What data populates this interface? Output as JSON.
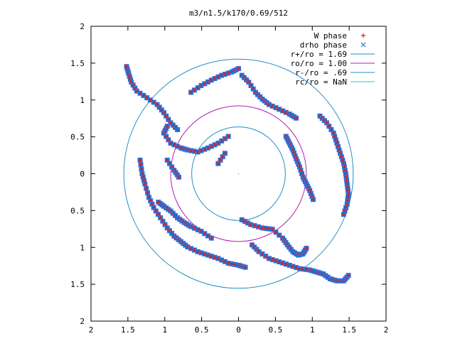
{
  "chart_data": {
    "type": "scatter",
    "title": "m3/n1.5/k170/0.69/512",
    "xlim": [
      -2,
      2
    ],
    "ylim": [
      -2,
      2
    ],
    "x_tick_values": [
      -2,
      -1.5,
      -1,
      -0.5,
      0,
      0.5,
      1,
      1.5,
      2
    ],
    "x_tick_labels": [
      "2",
      "1.5",
      "1",
      "0.5",
      "0",
      "0.5",
      "1",
      "1.5",
      "2"
    ],
    "y_tick_values": [
      2,
      1.5,
      1,
      0.5,
      0,
      -0.5,
      -1,
      -1.5,
      -2
    ],
    "y_tick_labels": [
      "2",
      "1.5",
      "1",
      "0.5",
      "0",
      "0.5",
      "1",
      "1.5",
      "2"
    ],
    "grid": false,
    "legend_position": "top-right",
    "circles": [
      {
        "label": "r+/ro = 1.69",
        "radius": 1.69,
        "color": "#1f8fc8"
      },
      {
        "label": "ro/ro = 1.00",
        "radius": 1.0,
        "color": "#b020b0"
      },
      {
        "label": "r-/ro = .69",
        "radius": 0.69,
        "color": "#1f8fc8"
      },
      {
        "label": "rc/ro = NaN",
        "radius": null,
        "color": "#22c8c8"
      }
    ],
    "series": [
      {
        "name": "W phase",
        "marker": "+",
        "color": "#e81414"
      },
      {
        "name": "drho phase",
        "marker": "x",
        "color": "#1e78e6"
      }
    ],
    "arms": [
      [
        [
          -0.15,
          0.55
        ],
        [
          -0.3,
          0.45
        ],
        [
          -0.45,
          0.38
        ],
        [
          -0.6,
          0.32
        ],
        [
          -0.75,
          0.35
        ],
        [
          -0.85,
          0.38
        ],
        [
          -1.0,
          0.45
        ],
        [
          -1.1,
          0.6
        ],
        [
          -1.05,
          0.7
        ]
      ],
      [
        [
          -0.9,
          0.65
        ],
        [
          -1.0,
          0.75
        ],
        [
          -1.1,
          0.9
        ],
        [
          -1.2,
          1.02
        ],
        [
          -1.35,
          1.12
        ],
        [
          -1.5,
          1.22
        ],
        [
          -1.58,
          1.35
        ],
        [
          -1.62,
          1.48
        ],
        [
          -1.65,
          1.58
        ]
      ],
      [
        [
          -0.2,
          0.3
        ],
        [
          -0.3,
          0.15
        ]
      ],
      [
        [
          0.05,
          -0.68
        ],
        [
          0.18,
          -0.75
        ],
        [
          0.35,
          -0.8
        ],
        [
          0.5,
          -0.82
        ],
        [
          0.65,
          -0.95
        ],
        [
          0.72,
          -1.05
        ],
        [
          0.8,
          -1.15
        ],
        [
          0.88,
          -1.2
        ],
        [
          0.95,
          -1.18
        ],
        [
          1.0,
          -1.1
        ]
      ],
      [
        [
          0.2,
          -1.05
        ],
        [
          0.3,
          -1.15
        ],
        [
          0.45,
          -1.25
        ],
        [
          0.6,
          -1.3
        ],
        [
          0.75,
          -1.35
        ],
        [
          0.9,
          -1.4
        ],
        [
          1.05,
          -1.42
        ],
        [
          1.15,
          -1.45
        ],
        [
          1.25,
          -1.48
        ],
        [
          1.35,
          -1.55
        ],
        [
          1.45,
          -1.58
        ],
        [
          1.55,
          -1.58
        ],
        [
          1.62,
          -1.5
        ]
      ],
      [
        [
          -0.4,
          -0.95
        ],
        [
          -0.55,
          -0.85
        ],
        [
          -0.7,
          -0.78
        ],
        [
          -0.8,
          -0.72
        ],
        [
          -0.9,
          -0.65
        ],
        [
          -1.0,
          -0.55
        ],
        [
          -1.1,
          -0.48
        ],
        [
          -1.18,
          -0.42
        ]
      ],
      [
        [
          0.05,
          1.45
        ],
        [
          0.15,
          1.35
        ],
        [
          0.25,
          1.2
        ],
        [
          0.35,
          1.1
        ],
        [
          0.45,
          1.02
        ],
        [
          0.6,
          0.95
        ],
        [
          0.75,
          0.88
        ],
        [
          0.85,
          0.82
        ]
      ],
      [
        [
          0.7,
          0.55
        ],
        [
          0.75,
          0.45
        ],
        [
          0.8,
          0.35
        ],
        [
          0.85,
          0.22
        ],
        [
          0.9,
          0.1
        ],
        [
          0.95,
          -0.05
        ],
        [
          1.0,
          -0.15
        ],
        [
          1.05,
          -0.25
        ],
        [
          1.1,
          -0.38
        ]
      ],
      [
        [
          1.2,
          0.85
        ],
        [
          1.3,
          0.75
        ],
        [
          1.4,
          0.6
        ],
        [
          1.45,
          0.45
        ],
        [
          1.5,
          0.3
        ],
        [
          1.55,
          0.15
        ],
        [
          1.58,
          0.0
        ],
        [
          1.6,
          -0.15
        ],
        [
          1.62,
          -0.3
        ],
        [
          1.6,
          -0.45
        ],
        [
          1.55,
          -0.6
        ]
      ],
      [
        [
          -1.45,
          0.2
        ],
        [
          -1.42,
          0.0
        ],
        [
          -1.38,
          -0.15
        ],
        [
          -1.32,
          -0.35
        ],
        [
          -1.25,
          -0.5
        ],
        [
          -1.15,
          -0.65
        ],
        [
          -1.05,
          -0.8
        ],
        [
          -0.95,
          -0.92
        ],
        [
          -0.85,
          -1.0
        ],
        [
          -0.75,
          -1.08
        ],
        [
          -0.6,
          -1.15
        ],
        [
          -0.45,
          -1.2
        ],
        [
          -0.3,
          -1.25
        ],
        [
          -0.15,
          -1.32
        ],
        [
          0.0,
          -1.35
        ],
        [
          0.1,
          -1.38
        ]
      ],
      [
        [
          -1.05,
          0.2
        ],
        [
          -0.95,
          0.05
        ],
        [
          -0.88,
          -0.05
        ]
      ],
      [
        [
          -0.7,
          1.2
        ],
        [
          -0.55,
          1.3
        ],
        [
          -0.4,
          1.38
        ],
        [
          -0.25,
          1.45
        ],
        [
          -0.1,
          1.5
        ],
        [
          0.0,
          1.55
        ]
      ]
    ]
  }
}
